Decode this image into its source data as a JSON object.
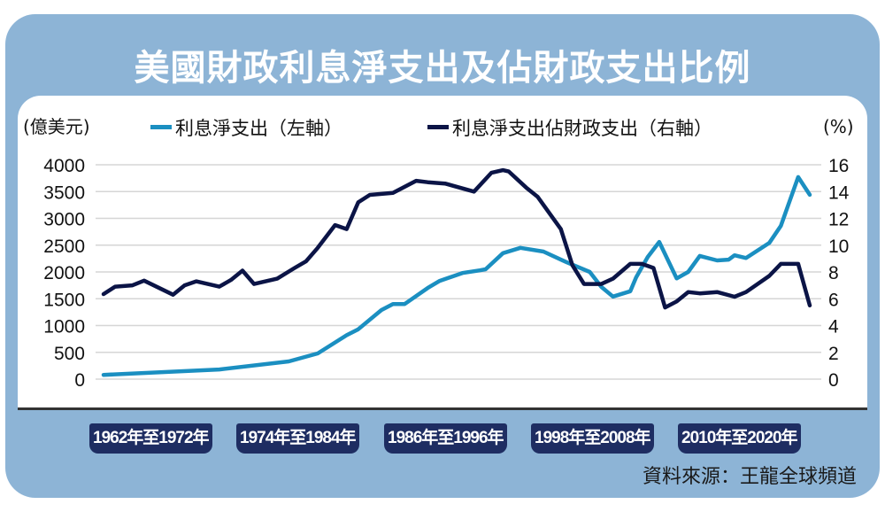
{
  "title": "美國財政利息淨支出及佔財政支出比例",
  "source": "資料來源：王龍全球頻道",
  "period_labels": [
    "1962年至1972年",
    "1974年至1984年",
    "1986年至1996年",
    "1998年至2008年",
    "2010年至2020年"
  ],
  "colors": {
    "left_series": "#1b8fc1",
    "right_series": "#0b1446",
    "frame": "#8db4d6",
    "badge": "#1e2d62"
  },
  "chart_data": {
    "type": "line",
    "title": "美國財政利息淨支出及佔財政支出比例",
    "ylabel_left": "(億美元)",
    "ylabel_right": "(%)",
    "ylim_left": [
      0,
      4000
    ],
    "ylim_right": [
      0,
      16
    ],
    "yticks_left": [
      "0",
      "500",
      "1000",
      "1500",
      "2000",
      "2500",
      "3000",
      "3500",
      "4000"
    ],
    "yticks_right": [
      "0",
      "2",
      "4",
      "6",
      "8",
      "10",
      "12",
      "14",
      "16"
    ],
    "xlim": [
      1962,
      2023
    ],
    "grid": true,
    "legend_placement": "top",
    "series": [
      {
        "name": "利息淨支出（左軸）",
        "axis": "left",
        "x": [
          1962,
          1972,
          1978,
          1980.5,
          1983,
          1984,
          1986,
          1987,
          1988,
          1990,
          1991,
          1993,
          1994.5,
          1995,
          1996.5,
          1998,
          2000,
          2002,
          2004,
          2005,
          2006,
          2007.5,
          2008,
          2009,
          2010,
          2011.5,
          2012.5,
          2013.5,
          2015,
          2016,
          2016.5,
          2017.5,
          2019.5,
          2020.5,
          2022,
          2023
        ],
        "y": [
          80,
          180,
          330,
          480,
          820,
          930,
          1290,
          1400,
          1400,
          1700,
          1830,
          1980,
          2030,
          2050,
          2350,
          2450,
          2380,
          2180,
          2000,
          1720,
          1540,
          1640,
          1900,
          2280,
          2560,
          1880,
          2000,
          2300,
          2215,
          2230,
          2310,
          2260,
          2540,
          2860,
          3770,
          3440
        ]
      },
      {
        "name": "利息淨支出佔財政支出（右軸）",
        "axis": "right",
        "x": [
          1962,
          1963,
          1964.5,
          1965.5,
          1968,
          1969,
          1970,
          1972,
          1973,
          1974,
          1975,
          1977,
          1978.5,
          1979.5,
          1980.5,
          1982,
          1983,
          1984,
          1985,
          1987,
          1989,
          1990,
          1991.5,
          1994,
          1995.5,
          1996.5,
          1997,
          1998.5,
          1999.5,
          2001.5,
          2002.5,
          2003.5,
          2005,
          2006,
          2007.5,
          2008.5,
          2009.5,
          2010.5,
          2011.5,
          2012.5,
          2013.5,
          2015,
          2016.5,
          2017.5,
          2019.5,
          2020.5,
          2022,
          2023
        ],
        "y": [
          6.35,
          6.9,
          7.0,
          7.35,
          6.3,
          7.0,
          7.3,
          6.9,
          7.4,
          8.1,
          7.1,
          7.5,
          8.3,
          8.8,
          9.8,
          11.5,
          11.2,
          13.2,
          13.75,
          13.9,
          14.8,
          14.7,
          14.6,
          14.0,
          15.4,
          15.6,
          15.5,
          14.3,
          13.6,
          11.2,
          8.5,
          7.1,
          7.1,
          7.5,
          8.6,
          8.6,
          8.3,
          5.35,
          5.8,
          6.5,
          6.4,
          6.5,
          6.15,
          6.5,
          7.7,
          8.6,
          8.6,
          5.5
        ]
      }
    ]
  }
}
